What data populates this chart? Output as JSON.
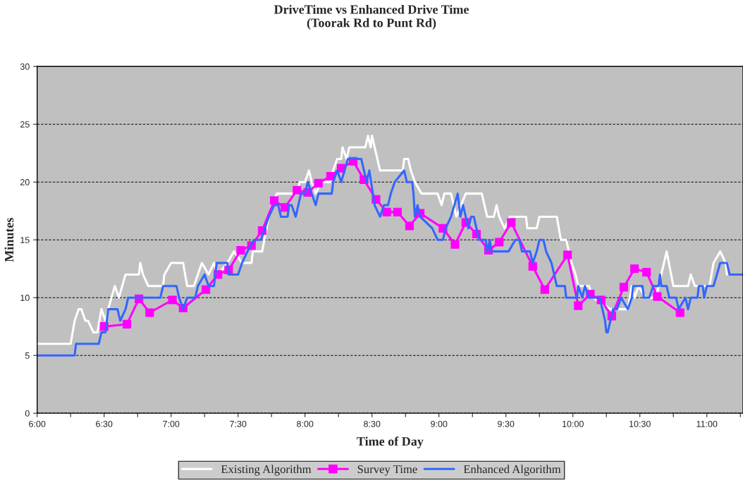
{
  "chart_data": {
    "type": "line",
    "title": "DriveTime vs Enhanced Drive Time\n(Toorak Rd to Punt Rd)",
    "xlabel": "Time of Day",
    "ylabel": "Minutes",
    "xlim": [
      6,
      11.27
    ],
    "ylim": [
      0,
      30
    ],
    "yticks": [
      0,
      5,
      10,
      15,
      20,
      25,
      30
    ],
    "xticks": [
      {
        "value": 6,
        "label": "6:00"
      },
      {
        "value": 6.25,
        "label": null
      },
      {
        "value": 6.5,
        "label": "6:30"
      },
      {
        "value": 6.75,
        "label": null
      },
      {
        "value": 7,
        "label": "7:00"
      },
      {
        "value": 7.25,
        "label": null
      },
      {
        "value": 7.5,
        "label": "7:30"
      },
      {
        "value": 7.75,
        "label": null
      },
      {
        "value": 8,
        "label": "8:00"
      },
      {
        "value": 8.25,
        "label": null
      },
      {
        "value": 8.5,
        "label": "8:30"
      },
      {
        "value": 8.75,
        "label": null
      },
      {
        "value": 9,
        "label": "9:00"
      },
      {
        "value": 9.25,
        "label": null
      },
      {
        "value": 9.5,
        "label": "9:30"
      },
      {
        "value": 9.75,
        "label": null
      },
      {
        "value": 10,
        "label": "10:00"
      },
      {
        "value": 10.25,
        "label": null
      },
      {
        "value": 10.5,
        "label": "10:30"
      },
      {
        "value": 10.75,
        "label": null
      },
      {
        "value": 11,
        "label": "11:00"
      },
      {
        "value": 11.25,
        "label": null
      }
    ],
    "grid": "y",
    "legend": "bottom",
    "line_style": "solid",
    "series": [
      {
        "name": "Existing Algorithm",
        "color": "#ffffff",
        "marker": "none",
        "x": [
          6.0,
          6.25,
          6.28,
          6.31,
          6.33,
          6.36,
          6.38,
          6.42,
          6.45,
          6.48,
          6.51,
          6.53,
          6.58,
          6.61,
          6.66,
          6.76,
          6.77,
          6.79,
          6.83,
          6.94,
          6.95,
          7.0,
          7.09,
          7.12,
          7.17,
          7.2,
          7.23,
          7.28,
          7.32,
          7.35,
          7.42,
          7.47,
          7.53,
          7.6,
          7.61,
          7.68,
          7.73,
          7.75,
          7.79,
          7.94,
          7.96,
          8.0,
          8.03,
          8.05,
          8.08,
          8.12,
          8.19,
          8.21,
          8.24,
          8.27,
          8.28,
          8.31,
          8.33,
          8.45,
          8.47,
          8.49,
          8.5,
          8.56,
          8.73,
          8.74,
          8.77,
          8.79,
          8.82,
          8.87,
          8.99,
          9.02,
          9.04,
          9.09,
          9.13,
          9.2,
          9.32,
          9.36,
          9.41,
          9.43,
          9.45,
          9.49,
          9.53,
          9.65,
          9.66,
          9.73,
          9.75,
          9.88,
          9.91,
          9.95,
          9.99,
          10.02,
          10.04,
          10.12,
          10.15,
          10.28,
          10.41,
          10.44,
          10.46,
          10.49,
          10.54,
          10.62,
          10.7,
          10.75,
          10.86,
          10.88,
          10.91,
          11.02,
          11.05,
          11.1,
          11.14,
          11.15
        ],
        "values": [
          6,
          6,
          8,
          9,
          9,
          8,
          8,
          7,
          7,
          9,
          8,
          9,
          11,
          10,
          12,
          12,
          13,
          12,
          11,
          11,
          12,
          13,
          13,
          11,
          11,
          12,
          13,
          12,
          13,
          12,
          13,
          14,
          13,
          13,
          14,
          14,
          17,
          18,
          19,
          19,
          20,
          20,
          21,
          20,
          19,
          20,
          20,
          21,
          22,
          22,
          23,
          22,
          23,
          23,
          24,
          23,
          24,
          21,
          21,
          22,
          22,
          21,
          20,
          19,
          19,
          18,
          19,
          19,
          17,
          19,
          19,
          17,
          17,
          18,
          17,
          16,
          17,
          17,
          16,
          16,
          17,
          17,
          15,
          15,
          13,
          12,
          11,
          11,
          10,
          9,
          9,
          11,
          10,
          11,
          10,
          10,
          14,
          11,
          11,
          12,
          11,
          11,
          13,
          14,
          13,
          12
        ]
      },
      {
        "name": "Survey Time",
        "color": "#ff00ff",
        "marker": "square",
        "x": [
          6.5,
          6.67,
          6.76,
          6.84,
          7.01,
          7.09,
          7.26,
          7.35,
          7.43,
          7.52,
          7.6,
          7.68,
          7.77,
          7.85,
          7.94,
          8.02,
          8.1,
          8.19,
          8.27,
          8.36,
          8.44,
          8.53,
          8.61,
          8.69,
          8.78,
          8.86,
          9.03,
          9.12,
          9.2,
          9.28,
          9.37,
          9.45,
          9.54,
          9.7,
          9.79,
          9.96,
          10.04,
          10.13,
          10.21,
          10.29,
          10.38,
          10.46,
          10.55,
          10.63,
          10.8
        ],
        "values": [
          7.5,
          7.7,
          9.9,
          8.7,
          9.8,
          9.1,
          10.7,
          12.0,
          12.4,
          14.1,
          14.5,
          15.8,
          18.4,
          17.8,
          19.3,
          19.1,
          19.9,
          20.5,
          21.2,
          21.8,
          20.2,
          18.5,
          17.4,
          17.4,
          16.2,
          17.3,
          16.0,
          14.6,
          16.5,
          15.5,
          14.1,
          14.8,
          16.5,
          12.7,
          10.7,
          13.7,
          9.3,
          10.3,
          9.8,
          8.4,
          10.9,
          12.5,
          12.2,
          10.1,
          8.7
        ]
      },
      {
        "name": "Enhanced Algorithm",
        "color": "#3366ff",
        "marker": "none",
        "x": [
          6.0,
          6.28,
          6.29,
          6.46,
          6.48,
          6.51,
          6.53,
          6.6,
          6.62,
          6.66,
          6.68,
          6.92,
          6.94,
          7.04,
          7.06,
          7.09,
          7.12,
          7.18,
          7.2,
          7.25,
          7.28,
          7.32,
          7.34,
          7.42,
          7.43,
          7.5,
          7.53,
          7.57,
          7.62,
          7.67,
          7.7,
          7.73,
          7.77,
          7.8,
          7.82,
          7.87,
          7.88,
          7.9,
          7.93,
          7.95,
          7.97,
          8.0,
          8.02,
          8.08,
          8.1,
          8.2,
          8.21,
          8.24,
          8.27,
          8.32,
          8.42,
          8.44,
          8.46,
          8.48,
          8.52,
          8.56,
          8.59,
          8.62,
          8.64,
          8.67,
          8.74,
          8.76,
          8.8,
          8.81,
          8.82,
          8.84,
          8.86,
          8.95,
          8.99,
          9.03,
          9.05,
          9.09,
          9.14,
          9.16,
          9.18,
          9.2,
          9.22,
          9.24,
          9.26,
          9.28,
          9.3,
          9.35,
          9.36,
          9.38,
          9.39,
          9.47,
          9.52,
          9.57,
          9.6,
          9.62,
          9.68,
          9.7,
          9.73,
          9.75,
          9.78,
          9.8,
          9.84,
          9.88,
          9.94,
          9.95,
          10.03,
          10.04,
          10.07,
          10.09,
          10.12,
          10.2,
          10.24,
          10.25,
          10.26,
          10.28,
          10.3,
          10.33,
          10.36,
          10.41,
          10.44,
          10.45,
          10.52,
          10.53,
          10.57,
          10.6,
          10.64,
          10.65,
          10.66,
          10.7,
          10.72,
          10.77,
          10.79,
          10.84,
          10.86,
          10.88,
          10.93,
          10.94,
          10.97,
          10.98,
          11.0,
          11.05,
          11.1,
          11.15,
          11.17,
          11.27
        ],
        "values": [
          5,
          5,
          6,
          6,
          7,
          7,
          9,
          9,
          8,
          9,
          10,
          10,
          11,
          11,
          10,
          9,
          10,
          10,
          11,
          12,
          11,
          11,
          13,
          13,
          12,
          12,
          13,
          14,
          15,
          15,
          16,
          17,
          18,
          18,
          17,
          17,
          18,
          18,
          17,
          18,
          19,
          19,
          20,
          18,
          19,
          19,
          20,
          21,
          20,
          22,
          22,
          21,
          20,
          21,
          18,
          17,
          18,
          18,
          19,
          20,
          21,
          20,
          20,
          19,
          17,
          18,
          17,
          16,
          15,
          15,
          16,
          17,
          19,
          17,
          18,
          17,
          16,
          17,
          17,
          16,
          15,
          15,
          14,
          15,
          14,
          14,
          14,
          15,
          15,
          14,
          14,
          13,
          14,
          15,
          15,
          14,
          13,
          11,
          11,
          10,
          10,
          11,
          10,
          11,
          10,
          10,
          8,
          7,
          7,
          8,
          9,
          9,
          10,
          9,
          10,
          11,
          11,
          10,
          10,
          11,
          11,
          12,
          11,
          11,
          10,
          10,
          9,
          10,
          9,
          10,
          10,
          11,
          11,
          10,
          11,
          11,
          13,
          13,
          12,
          12
        ]
      }
    ]
  }
}
